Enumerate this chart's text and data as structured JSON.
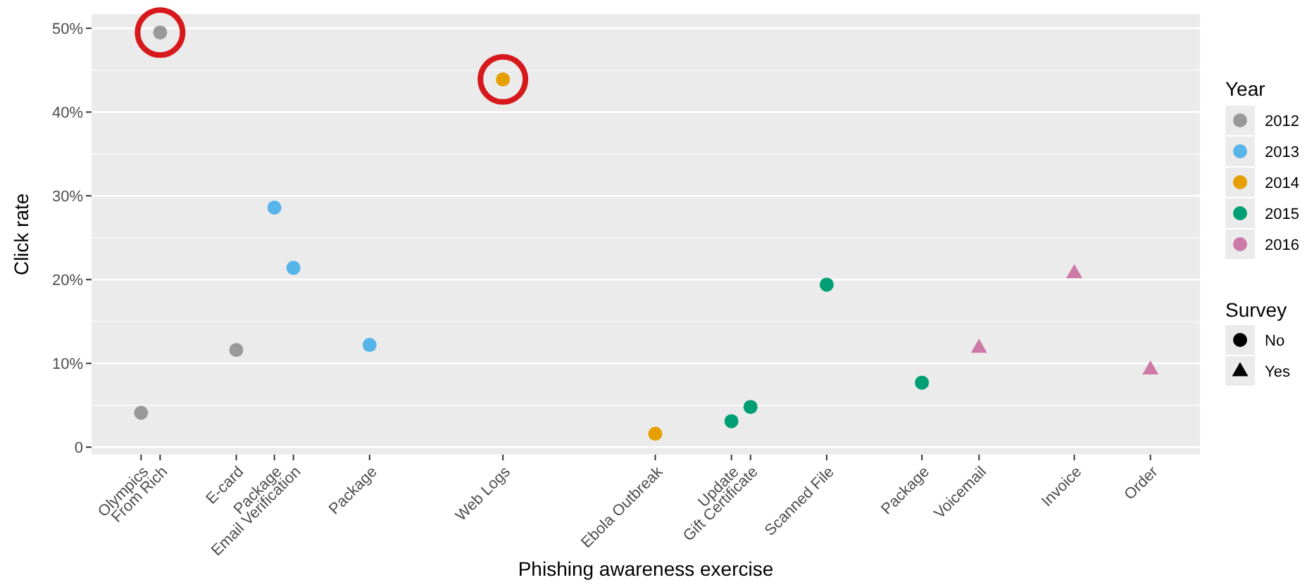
{
  "chart_data": {
    "type": "scatter",
    "xlabel": "Phishing awareness exercise",
    "ylabel": "Click rate",
    "legend_title": "Year",
    "legend": "right",
    "grid": "y",
    "marker": "circle",
    "ylim": [
      -0.9,
      51.7
    ],
    "categories": [
      "Olympics",
      "From Rich",
      null,
      null,
      null,
      "E-card",
      null,
      "Package",
      "Email Verification",
      null,
      null,
      null,
      "Package",
      null,
      null,
      null,
      null,
      null,
      null,
      "Web Logs",
      null,
      null,
      null,
      null,
      null,
      null,
      null,
      "Ebola Outbreak",
      null,
      null,
      null,
      "Update",
      "Gift Certificate",
      null,
      null,
      null,
      "Scanned File",
      null,
      null,
      null,
      null,
      "Package",
      null,
      null,
      "Voicemail",
      null,
      null,
      null,
      null,
      "Invoice",
      null,
      null,
      null,
      "Order"
    ],
    "yticks": [
      0,
      {
        "value": 10,
        "label": "10%"
      },
      {
        "value": 20,
        "label": "20%"
      },
      {
        "value": 30,
        "label": "30%"
      },
      {
        "value": 40,
        "label": "40%"
      },
      {
        "value": 50,
        "label": "50%"
      }
    ],
    "series": [
      {
        "name": "2012",
        "color": "#999999",
        "values": [
          4.1,
          49.5,
          null,
          null,
          null,
          11.6,
          null,
          null,
          null,
          null,
          null,
          null,
          null,
          null,
          null,
          null,
          null,
          null,
          null,
          null,
          null,
          null,
          null,
          null,
          null,
          null,
          null,
          null,
          null,
          null,
          null,
          null,
          null,
          null,
          null,
          null,
          null,
          null,
          null,
          null,
          null,
          null,
          null,
          null,
          null,
          null,
          null,
          null,
          null,
          null,
          null,
          null,
          null,
          null
        ]
      },
      {
        "name": "2013",
        "color": "#56b4e9",
        "values": [
          null,
          null,
          null,
          null,
          null,
          null,
          null,
          28.6,
          21.4,
          null,
          null,
          null,
          12.2,
          null,
          null,
          null,
          null,
          null,
          null,
          null,
          null,
          null,
          null,
          null,
          null,
          null,
          null,
          null,
          null,
          null,
          null,
          null,
          null,
          null,
          null,
          null,
          null,
          null,
          null,
          null,
          null,
          null,
          null,
          null,
          null,
          null,
          null,
          null,
          null,
          null,
          null,
          null,
          null,
          null
        ]
      },
      {
        "name": "2014",
        "color": "#e69f00",
        "values": [
          null,
          null,
          null,
          null,
          null,
          null,
          null,
          null,
          null,
          null,
          null,
          null,
          null,
          null,
          null,
          null,
          null,
          null,
          null,
          43.9,
          null,
          null,
          null,
          null,
          null,
          null,
          null,
          1.6,
          null,
          null,
          null,
          null,
          null,
          null,
          null,
          null,
          null,
          null,
          null,
          null,
          null,
          null,
          null,
          null,
          null,
          null,
          null,
          null,
          null,
          null,
          null,
          null,
          null,
          null
        ]
      },
      {
        "name": "2015",
        "color": "#009e73",
        "values": [
          null,
          null,
          null,
          null,
          null,
          null,
          null,
          null,
          null,
          null,
          null,
          null,
          null,
          null,
          null,
          null,
          null,
          null,
          null,
          null,
          null,
          null,
          null,
          null,
          null,
          null,
          null,
          null,
          null,
          null,
          null,
          3.1,
          4.8,
          null,
          null,
          null,
          19.4,
          null,
          null,
          null,
          null,
          7.7,
          null,
          null,
          null,
          null,
          null,
          null,
          null,
          null,
          null,
          null,
          null,
          null
        ]
      },
      {
        "name": "2016",
        "color": "#cc79a7",
        "marker": "triangle",
        "values": [
          null,
          null,
          null,
          null,
          null,
          null,
          null,
          null,
          null,
          null,
          null,
          null,
          null,
          null,
          null,
          null,
          null,
          null,
          null,
          null,
          null,
          null,
          null,
          null,
          null,
          null,
          null,
          null,
          null,
          null,
          null,
          null,
          null,
          null,
          null,
          null,
          null,
          null,
          null,
          null,
          null,
          null,
          null,
          null,
          11.9,
          null,
          null,
          null,
          null,
          20.8,
          null,
          null,
          null,
          9.3
        ]
      },
      {
        "type": "bubble",
        "color": "#d7191c",
        "values": [
          null,
          49.5,
          null,
          null,
          null,
          null,
          null,
          null,
          null,
          null,
          null,
          null,
          null,
          null,
          null,
          null,
          null,
          null,
          null,
          43.9,
          null,
          null,
          null,
          null,
          null,
          null,
          null,
          null,
          null,
          null,
          null,
          null,
          null,
          null,
          null,
          null,
          null,
          null,
          null,
          null,
          null,
          null,
          null,
          null,
          null,
          null,
          null,
          null,
          null,
          null,
          null,
          null,
          null,
          null
        ],
        "sizes": [
          null,
          1,
          null,
          null,
          null,
          null,
          null,
          null,
          null,
          null,
          null,
          null,
          null,
          null,
          null,
          null,
          null,
          null,
          null,
          1,
          null,
          null,
          null,
          null,
          null,
          null,
          null,
          null,
          null,
          null,
          null,
          null,
          null,
          null,
          null,
          null,
          null,
          null,
          null,
          null,
          null,
          null,
          null,
          null,
          null,
          null,
          null,
          null,
          null,
          null,
          null,
          null,
          null,
          null
        ]
      }
    ],
    "annotations": [
      "Survey",
      "No",
      "Yes"
    ]
  }
}
